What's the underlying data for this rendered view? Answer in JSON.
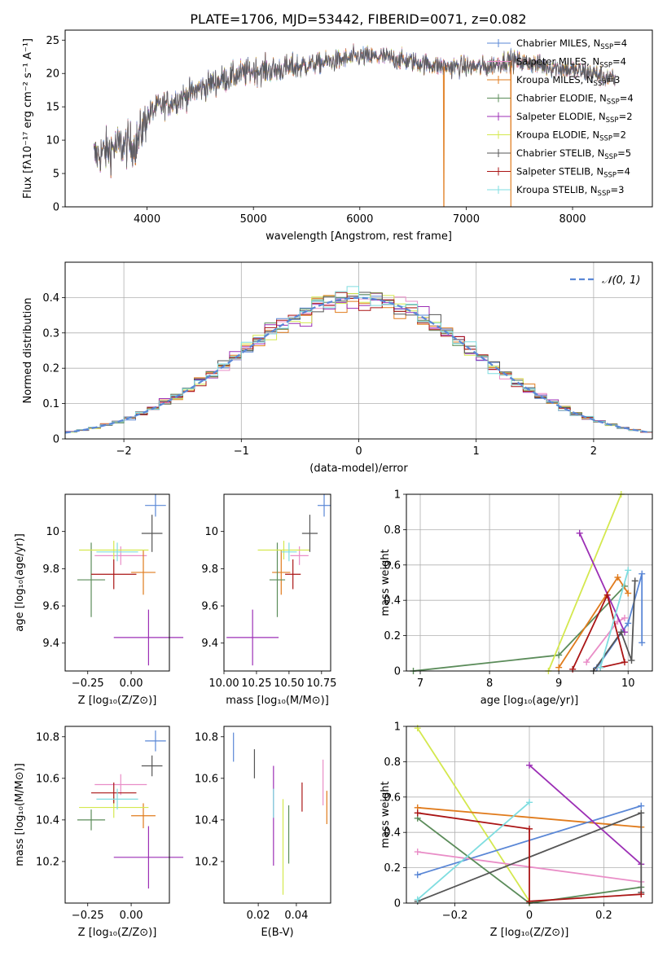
{
  "figure_title": "PLATE=1706, MJD=53442, FIBERID=0071, z=0.082",
  "colors": {
    "chabrier_miles": "#5a87d6",
    "salpeter_miles": "#e98dc7",
    "kroupa_miles": "#e07b1c",
    "chabrier_elodie": "#5b8c5a",
    "salpeter_elodie": "#9c2fb5",
    "kroupa_elodie": "#d4e84e",
    "chabrier_stelib": "#555555",
    "salpeter_stelib": "#aa1515",
    "kroupa_stelib": "#7fdde0",
    "gaussian": "#5a87d6"
  },
  "legend_models": [
    {
      "key": "chabrier_miles",
      "label": "Chabrier MILES, N",
      "sub": "SSP",
      "n": "=4"
    },
    {
      "key": "salpeter_miles",
      "label": "Salpeter MILES, N",
      "sub": "SSP",
      "n": "=4"
    },
    {
      "key": "kroupa_miles",
      "label": "Kroupa MILES, N",
      "sub": "SSP",
      "n": "=3"
    },
    {
      "key": "chabrier_elodie",
      "label": "Chabrier ELODIE, N",
      "sub": "SSP",
      "n": "=4"
    },
    {
      "key": "salpeter_elodie",
      "label": "Salpeter ELODIE, N",
      "sub": "SSP",
      "n": "=2"
    },
    {
      "key": "kroupa_elodie",
      "label": "Kroupa ELODIE, N",
      "sub": "SSP",
      "n": "=2"
    },
    {
      "key": "chabrier_stelib",
      "label": "Chabrier STELIB, N",
      "sub": "SSP",
      "n": "=5"
    },
    {
      "key": "salpeter_stelib",
      "label": "Salpeter STELIB, N",
      "sub": "SSP",
      "n": "=4"
    },
    {
      "key": "kroupa_stelib",
      "label": "Kroupa STELIB, N",
      "sub": "SSP",
      "n": "=3"
    }
  ],
  "chart_data": [
    {
      "id": "spectrum",
      "type": "line",
      "xlabel": "wavelength [Angstrom, rest frame]",
      "ylabel": "Flux [fλ10⁻¹⁷ erg cm⁻² s⁻¹ A⁻¹]",
      "xlim": [
        3230,
        8750
      ],
      "ylim": [
        0,
        26.5
      ],
      "xticks": [
        4000,
        5000,
        6000,
        7000,
        8000
      ],
      "yticks": [
        0,
        5,
        10,
        15,
        20,
        25
      ],
      "grid": false,
      "legend": "right",
      "continuum_x": [
        3500,
        3700,
        3900,
        4000,
        4100,
        4200,
        4400,
        4600,
        4800,
        5000,
        5200,
        5400,
        5600,
        5800,
        6000,
        6200,
        6400,
        6600,
        6800,
        7000,
        7200,
        7400,
        7600,
        7800,
        8000,
        8200,
        8400
      ],
      "continuum_y": [
        7.5,
        9.0,
        9.5,
        13.5,
        15.0,
        15.5,
        17.0,
        18.5,
        19.5,
        20.5,
        20.5,
        21.0,
        21.5,
        22.0,
        22.5,
        22.5,
        22.0,
        21.5,
        21.0,
        21.0,
        21.0,
        22.0,
        21.5,
        21.0,
        20.5,
        20.0,
        19.0
      ],
      "dropouts": [
        {
          "series": "kroupa_miles",
          "x": 6790
        },
        {
          "series": "kroupa_miles",
          "x": 7420
        }
      ]
    },
    {
      "id": "residuals",
      "type": "histogram",
      "xlabel": "(data-model)/error",
      "ylabel": "Normed distribution",
      "xlim": [
        -2.5,
        2.5
      ],
      "ylim": [
        0,
        0.5
      ],
      "xticks": [
        -2,
        -1,
        0,
        1,
        2
      ],
      "yticks": [
        0.0,
        0.1,
        0.2,
        0.3,
        0.4
      ],
      "grid": true,
      "legend": "top-right",
      "legend_label": "𝒩(0, 1)"
    },
    {
      "id": "age_vs_Z",
      "type": "scatter",
      "xlabel": "Z [log₁₀(Z/Z⊙)]",
      "ylabel": "age  [log₁₀(age/yr)]",
      "xlim": [
        -0.38,
        0.22
      ],
      "ylim": [
        9.25,
        10.2
      ],
      "xticks": [
        -0.25,
        0.0
      ],
      "yticks": [
        9.4,
        9.6,
        9.8,
        10.0
      ],
      "points": [
        {
          "series": "chabrier_miles",
          "x": 0.14,
          "y": 10.14,
          "xerr": 0.06,
          "yerr": 0.06
        },
        {
          "series": "salpeter_miles",
          "x": -0.06,
          "y": 9.87,
          "xerr": 0.15,
          "yerr": 0.05
        },
        {
          "series": "kroupa_miles",
          "x": 0.07,
          "y": 9.78,
          "xerr": 0.07,
          "yerr": 0.12
        },
        {
          "series": "chabrier_elodie",
          "x": -0.23,
          "y": 9.74,
          "xerr": 0.08,
          "yerr": 0.2
        },
        {
          "series": "salpeter_elodie",
          "x": 0.1,
          "y": 9.43,
          "xerr": 0.2,
          "yerr": 0.15
        },
        {
          "series": "kroupa_elodie",
          "x": -0.1,
          "y": 9.9,
          "xerr": 0.2,
          "yerr": 0.05
        },
        {
          "series": "chabrier_stelib",
          "x": 0.12,
          "y": 9.99,
          "xerr": 0.06,
          "yerr": 0.1
        },
        {
          "series": "salpeter_stelib",
          "x": -0.1,
          "y": 9.77,
          "xerr": 0.13,
          "yerr": 0.08
        },
        {
          "series": "kroupa_stelib",
          "x": -0.08,
          "y": 9.89,
          "xerr": 0.12,
          "yerr": 0.05
        }
      ]
    },
    {
      "id": "age_vs_mass",
      "type": "scatter",
      "xlabel": "mass [log₁₀(M/M⊙)]",
      "ylabel": "",
      "xlim": [
        10.0,
        10.82
      ],
      "ylim": [
        9.25,
        10.2
      ],
      "xticks": [
        10.0,
        10.25,
        10.5,
        10.75
      ],
      "yticks": [
        9.4,
        9.6,
        9.8,
        10.0
      ],
      "points": [
        {
          "series": "chabrier_miles",
          "x": 10.77,
          "y": 10.14,
          "xerr": 0.05,
          "yerr": 0.06
        },
        {
          "series": "salpeter_miles",
          "x": 10.58,
          "y": 9.87,
          "xerr": 0.07,
          "yerr": 0.05
        },
        {
          "series": "kroupa_miles",
          "x": 10.44,
          "y": 9.78,
          "xerr": 0.07,
          "yerr": 0.12
        },
        {
          "series": "chabrier_elodie",
          "x": 10.41,
          "y": 9.74,
          "xerr": 0.06,
          "yerr": 0.2
        },
        {
          "series": "salpeter_elodie",
          "x": 10.22,
          "y": 9.43,
          "xerr": 0.2,
          "yerr": 0.15
        },
        {
          "series": "kroupa_elodie",
          "x": 10.46,
          "y": 9.9,
          "xerr": 0.2,
          "yerr": 0.05
        },
        {
          "series": "chabrier_stelib",
          "x": 10.66,
          "y": 9.99,
          "xerr": 0.06,
          "yerr": 0.1
        },
        {
          "series": "salpeter_stelib",
          "x": 10.53,
          "y": 9.77,
          "xerr": 0.06,
          "yerr": 0.08
        },
        {
          "series": "kroupa_stelib",
          "x": 10.5,
          "y": 9.89,
          "xerr": 0.06,
          "yerr": 0.05
        }
      ]
    },
    {
      "id": "weight_vs_age",
      "type": "line",
      "xlabel": "age  [log₁₀(age/yr)]",
      "ylabel": "mass weight",
      "xlim": [
        6.8,
        10.35
      ],
      "ylim": [
        0,
        1.0
      ],
      "xticks": [
        7,
        8,
        9,
        10
      ],
      "yticks": [
        0.0,
        0.2,
        0.4,
        0.6,
        0.8,
        1.0
      ],
      "grid": true,
      "series": [
        {
          "key": "chabrier_elodie",
          "x": [
            6.9,
            9.0,
            9.95
          ],
          "y": [
            0.0,
            0.09,
            0.48
          ]
        },
        {
          "key": "kroupa_elodie",
          "x": [
            8.85,
            9.9
          ],
          "y": [
            0.0,
            1.0
          ]
        },
        {
          "key": "chabrier_miles",
          "x": [
            9.55,
            10.0,
            10.2,
            10.2
          ],
          "y": [
            0.02,
            0.27,
            0.55,
            0.16
          ]
        },
        {
          "key": "salpeter_miles",
          "x": [
            9.4,
            9.85,
            9.95
          ],
          "y": [
            0.05,
            0.28,
            0.3
          ]
        },
        {
          "key": "kroupa_miles",
          "x": [
            9.0,
            9.85,
            10.0
          ],
          "y": [
            0.02,
            0.53,
            0.44
          ]
        },
        {
          "key": "salpeter_elodie",
          "x": [
            9.3,
            9.95
          ],
          "y": [
            0.78,
            0.22
          ]
        },
        {
          "key": "chabrier_stelib",
          "x": [
            9.5,
            9.9,
            10.05,
            10.1
          ],
          "y": [
            0.0,
            0.22,
            0.06,
            0.51
          ]
        },
        {
          "key": "salpeter_stelib",
          "x": [
            9.2,
            9.7,
            9.95,
            9.6
          ],
          "y": [
            0.01,
            0.43,
            0.05,
            0.02
          ]
        },
        {
          "key": "kroupa_stelib",
          "x": [
            9.6,
            10.0
          ],
          "y": [
            0.02,
            0.57
          ]
        }
      ]
    },
    {
      "id": "mass_vs_Z",
      "type": "scatter",
      "xlabel": "Z [log₁₀(Z/Z⊙)]",
      "ylabel": "mass [log₁₀(M/M⊙)]",
      "xlim": [
        -0.38,
        0.22
      ],
      "ylim": [
        10.0,
        10.85
      ],
      "xticks": [
        -0.25,
        0.0
      ],
      "yticks": [
        10.2,
        10.4,
        10.6,
        10.8
      ],
      "points": [
        {
          "series": "chabrier_miles",
          "x": 0.14,
          "y": 10.78,
          "xerr": 0.06,
          "yerr": 0.05
        },
        {
          "series": "salpeter_miles",
          "x": -0.06,
          "y": 10.57,
          "xerr": 0.15,
          "yerr": 0.05
        },
        {
          "series": "kroupa_miles",
          "x": 0.07,
          "y": 10.42,
          "xerr": 0.07,
          "yerr": 0.06
        },
        {
          "series": "chabrier_elodie",
          "x": -0.23,
          "y": 10.4,
          "xerr": 0.08,
          "yerr": 0.05
        },
        {
          "series": "salpeter_elodie",
          "x": 0.1,
          "y": 10.22,
          "xerr": 0.2,
          "yerr": 0.15
        },
        {
          "series": "kroupa_elodie",
          "x": -0.1,
          "y": 10.46,
          "xerr": 0.2,
          "yerr": 0.05
        },
        {
          "series": "chabrier_stelib",
          "x": 0.12,
          "y": 10.66,
          "xerr": 0.06,
          "yerr": 0.05
        },
        {
          "series": "salpeter_stelib",
          "x": -0.1,
          "y": 10.53,
          "xerr": 0.13,
          "yerr": 0.05
        },
        {
          "series": "kroupa_stelib",
          "x": -0.08,
          "y": 10.5,
          "xerr": 0.12,
          "yerr": 0.05
        }
      ]
    },
    {
      "id": "mass_vs_ebv",
      "type": "scatter",
      "xlabel": "E(B-V)",
      "ylabel": "",
      "xlim": [
        0.002,
        0.058
      ],
      "ylim": [
        10.0,
        10.85
      ],
      "xticks": [
        0.02,
        0.04
      ],
      "yticks": [
        10.2,
        10.4,
        10.6,
        10.8
      ],
      "points": [
        {
          "series": "chabrier_miles",
          "x": 0.007,
          "y": 10.75,
          "yerr": 0.07
        },
        {
          "series": "salpeter_miles",
          "x": 0.054,
          "y": 10.58,
          "yerr": 0.11
        },
        {
          "series": "kroupa_miles",
          "x": 0.056,
          "y": 10.46,
          "yerr": 0.08
        },
        {
          "series": "chabrier_elodie",
          "x": 0.036,
          "y": 10.33,
          "yerr": 0.14
        },
        {
          "series": "salpeter_elodie",
          "x": 0.028,
          "y": 10.42,
          "yerr": 0.24
        },
        {
          "series": "kroupa_elodie",
          "x": 0.033,
          "y": 10.27,
          "yerr": 0.23
        },
        {
          "series": "chabrier_stelib",
          "x": 0.018,
          "y": 10.67,
          "yerr": 0.07
        },
        {
          "series": "salpeter_stelib",
          "x": 0.043,
          "y": 10.51,
          "yerr": 0.07
        },
        {
          "series": "kroupa_stelib",
          "x": 0.028,
          "y": 10.48,
          "yerr": 0.07
        }
      ]
    },
    {
      "id": "weight_vs_Z",
      "type": "line",
      "xlabel": "Z [log₁₀(Z/Z⊙)]",
      "ylabel": "mass weight",
      "xlim": [
        -0.33,
        0.33
      ],
      "ylim": [
        0,
        1.0
      ],
      "xticks": [
        -0.2,
        0.0,
        0.2
      ],
      "yticks": [
        0.0,
        0.2,
        0.4,
        0.6,
        0.8,
        1.0
      ],
      "grid": true,
      "series": [
        {
          "key": "kroupa_elodie",
          "x": [
            -0.3,
            0.0
          ],
          "y": [
            0.99,
            0.01
          ]
        },
        {
          "key": "kroupa_miles",
          "x": [
            -0.3,
            0.3
          ],
          "y": [
            0.54,
            0.43
          ]
        },
        {
          "key": "chabrier_miles",
          "x": [
            -0.3,
            0.3
          ],
          "y": [
            0.16,
            0.55
          ]
        },
        {
          "key": "salpeter_miles",
          "x": [
            -0.3,
            0.3
          ],
          "y": [
            0.29,
            0.12
          ]
        },
        {
          "key": "chabrier_elodie",
          "x": [
            -0.3,
            0.0,
            0.3
          ],
          "y": [
            0.48,
            0.0,
            0.09
          ]
        },
        {
          "key": "salpeter_elodie",
          "x": [
            0.0,
            0.3
          ],
          "y": [
            0.78,
            0.22
          ]
        },
        {
          "key": "chabrier_stelib",
          "x": [
            -0.3,
            0.3,
            0.3
          ],
          "y": [
            0.01,
            0.51,
            0.06
          ]
        },
        {
          "key": "salpeter_stelib",
          "x": [
            -0.3,
            0.0,
            0.0,
            0.3
          ],
          "y": [
            0.51,
            0.42,
            0.01,
            0.05
          ]
        },
        {
          "key": "kroupa_stelib",
          "x": [
            -0.3,
            0.0
          ],
          "y": [
            0.02,
            0.57
          ]
        }
      ]
    }
  ]
}
